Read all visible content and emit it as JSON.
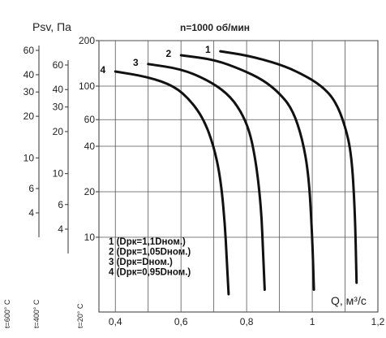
{
  "chart_data": {
    "type": "line",
    "title": "n=1000 об/мин",
    "ylabel": "Psv, Па",
    "xlabel": "Q, м³/с",
    "xlim": [
      0.35,
      1.2
    ],
    "ylim": [
      3.2,
      200
    ],
    "y_scale": "log",
    "grid": true,
    "x_ticks": [
      "0,4",
      "0,6",
      "0,8",
      "1",
      "1,2"
    ],
    "x_tick_values": [
      0.4,
      0.6,
      0.8,
      1.0,
      1.2
    ],
    "y_ticks": [
      "200",
      "100",
      "60",
      "40",
      "20",
      "10"
    ],
    "y_tick_values": [
      200,
      100,
      60,
      40,
      20,
      10
    ],
    "extra_axes": [
      {
        "label": "t=600° C",
        "ticks": [
          "60",
          "40",
          "30",
          "20",
          "10",
          "6",
          "4"
        ],
        "values": [
          60,
          40,
          30,
          20,
          10,
          6,
          4
        ]
      },
      {
        "label": "t=400° C",
        "ticks": [
          "60",
          "40",
          "30",
          "20",
          "10",
          "6",
          "4"
        ],
        "values": [
          60,
          40,
          30,
          20,
          10,
          6,
          4
        ]
      },
      {
        "label": "t=20° C"
      }
    ],
    "series": [
      {
        "name": "1",
        "legend": "1 (Dрк=1,1Dном.)",
        "x": [
          0.72,
          0.8,
          0.9,
          0.97,
          1.03,
          1.07,
          1.1,
          1.12,
          1.13,
          1.135
        ],
        "y": [
          170,
          160,
          140,
          120,
          100,
          80,
          55,
          35,
          15,
          5
        ]
      },
      {
        "name": "2",
        "legend": "2 (Dрк=1,05Dном.)",
        "x": [
          0.6,
          0.7,
          0.78,
          0.85,
          0.9,
          0.94,
          0.97,
          0.99,
          1.0,
          1.005
        ],
        "y": [
          160,
          150,
          130,
          110,
          90,
          70,
          45,
          25,
          10,
          4.5
        ]
      },
      {
        "name": "3",
        "legend": "3 (Dрк=Dном.)",
        "x": [
          0.5,
          0.6,
          0.68,
          0.74,
          0.78,
          0.81,
          0.83,
          0.845,
          0.85,
          0.855
        ],
        "y": [
          140,
          130,
          110,
          90,
          70,
          50,
          30,
          15,
          8,
          4.5
        ]
      },
      {
        "name": "4",
        "legend": "4 (Dрк=0,95Dном.)",
        "x": [
          0.4,
          0.5,
          0.58,
          0.63,
          0.67,
          0.7,
          0.72,
          0.733,
          0.74,
          0.745
        ],
        "y": [
          125,
          115,
          100,
          80,
          60,
          40,
          25,
          13,
          7,
          4.2
        ]
      }
    ]
  }
}
